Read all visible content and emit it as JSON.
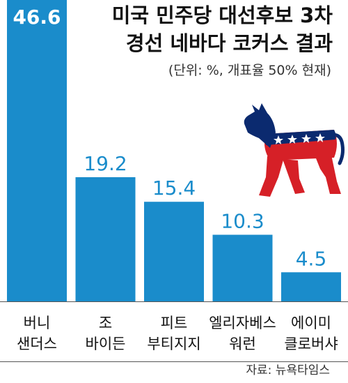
{
  "chart_data": {
    "type": "bar",
    "title_lines": [
      "미국 민주당 대선후보 3차",
      "경선 네바다 코커스 결과"
    ],
    "subtitle": "(단위: %, 개표율 50% 현재)",
    "source": "자료: 뉴욕타임스",
    "categories": [
      [
        "버니",
        "샌더스"
      ],
      [
        "조",
        "바이든"
      ],
      [
        "피트",
        "부티지지"
      ],
      [
        "엘리자베스",
        "워런"
      ],
      [
        "에이미",
        "클로버샤"
      ]
    ],
    "values": [
      46.6,
      19.2,
      15.4,
      10.3,
      4.5
    ],
    "value_labels": [
      "46.6",
      "19.2",
      "15.4",
      "10.3",
      "4.5"
    ],
    "ylim": [
      0,
      46.6
    ],
    "bar_color": "#1a8ccb",
    "first_label_color": "#ffffff",
    "label_color": "#1a8ccb",
    "mascot": {
      "icon": "democratic-donkey-icon",
      "colors": [
        "#0b2a6f",
        "#d62027",
        "#ffffff"
      ]
    }
  }
}
